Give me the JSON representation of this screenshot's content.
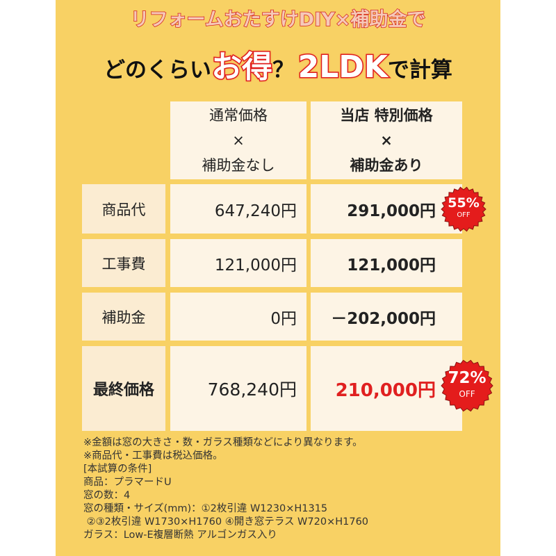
{
  "title": {
    "line1": "リフォームおたすけDIY×補助金で",
    "line2_pre": "どのくらい",
    "line2_em1": "お得",
    "line2_q": "？",
    "line2_em2": "2LDK",
    "line2_post": "で計算"
  },
  "table": {
    "headers": [
      {
        "line1": "通常価格",
        "line2": "×",
        "line3": "補助金なし"
      },
      {
        "line1": "当店 特別価格",
        "line2": "×",
        "line3": "補助金あり"
      }
    ],
    "rows": [
      {
        "label": "商品代",
        "normal": "647,240円",
        "special": "291,000円",
        "badge": {
          "percent": "55%",
          "off": "OFF"
        }
      },
      {
        "label": "工事費",
        "normal": "121,000円",
        "special": "121,000円"
      },
      {
        "label": "補助金",
        "normal": "0円",
        "special": "－202,000円"
      },
      {
        "label": "最終価格",
        "normal": "768,240円",
        "special": "210,000円",
        "badge": {
          "percent": "72%",
          "off": "OFF"
        }
      }
    ]
  },
  "notes": [
    "※金額は窓の大きさ・数・ガラス種類などにより異なります。",
    "※商品代・工事費は税込価格。",
    "[本試算の条件]",
    "商品：プラマードU",
    "窓の数：4",
    "窓の種類・サイズ(mm)：①2枚引違 W1230×H1315",
    " ②③2枚引違 W1730×H1760 ④開き窓テラス W720×H1760",
    "ガラス：Low-E複層断熱 アルゴンガス入り"
  ],
  "colors": {
    "background": "#f8d164",
    "cell": "#fdf4e5",
    "accent": "#e02020"
  }
}
